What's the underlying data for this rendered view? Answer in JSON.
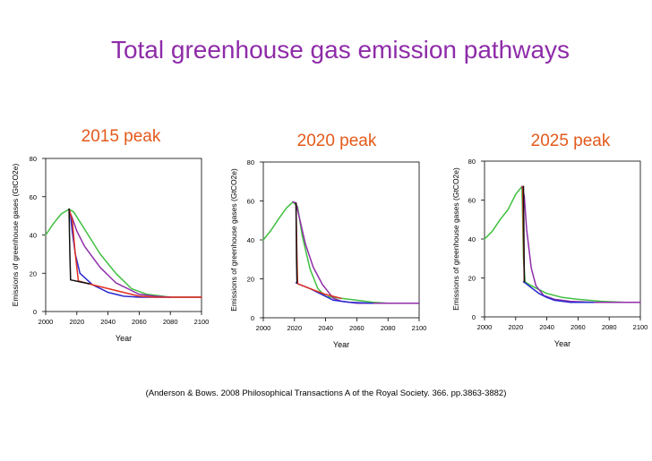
{
  "title": "Total greenhouse gas emission pathways",
  "citation": "(Anderson & Bows. 2008 Philosophical Transactions A of the Royal Society. 366. pp.3863-3882)",
  "colors": {
    "title": "#8e2ca8",
    "panel_title": "#e35a1b"
  },
  "chart_data": [
    {
      "type": "line",
      "title": "2015 peak",
      "xlabel": "Year",
      "ylabel": "Emissions of greenhouse gases (GtCO2e)",
      "xlim": [
        2000,
        2100
      ],
      "ylim": [
        0,
        80
      ],
      "xticks": [
        "2000",
        "2020",
        "2040",
        "2060",
        "2080",
        "2100"
      ],
      "yticks": [
        "0",
        "20",
        "40",
        "60",
        "80"
      ],
      "grid": false,
      "series": [
        {
          "name": "green",
          "color": "#3fbf3f",
          "x": [
            2000,
            2005,
            2010,
            2015,
            2018,
            2025,
            2035,
            2045,
            2055,
            2065,
            2080,
            2100
          ],
          "y": [
            40,
            46,
            51,
            53.5,
            52,
            43,
            30,
            20,
            12,
            9,
            7.5,
            7.5
          ]
        },
        {
          "name": "purple",
          "color": "#8f2fa8",
          "x": [
            2015,
            2016,
            2017,
            2020,
            2025,
            2035,
            2045,
            2055,
            2060,
            2070,
            2080,
            2100
          ],
          "y": [
            53.5,
            51,
            49,
            42,
            34,
            23,
            15,
            11,
            9,
            8,
            7.5,
            7.5
          ]
        },
        {
          "name": "blue",
          "color": "#2a2ad0",
          "x": [
            2015,
            2016,
            2017,
            2019,
            2022,
            2030,
            2040,
            2050,
            2060,
            2070,
            2080
          ],
          "y": [
            53.5,
            50,
            42,
            30,
            20,
            14,
            10,
            8,
            7.5,
            7.5,
            7.5
          ]
        },
        {
          "name": "red",
          "color": "#e03020",
          "x": [
            2015,
            2017,
            2019,
            2021,
            2030,
            2040,
            2050,
            2060,
            2070,
            2080,
            2100
          ],
          "y": [
            53.5,
            48,
            30,
            16,
            14,
            12,
            10,
            8,
            7.5,
            7.5,
            7.5
          ]
        },
        {
          "name": "black",
          "color": "#111111",
          "x": [
            2015,
            2015.5,
            2016,
            2022,
            2028
          ],
          "y": [
            53.5,
            30,
            16.5,
            15.5,
            14.5
          ]
        }
      ]
    },
    {
      "type": "line",
      "title": "2020 peak",
      "xlabel": "Year",
      "ylabel": "Emissions of greenhouse gases (GtCO2e)",
      "xlim": [
        2000,
        2100
      ],
      "ylim": [
        0,
        80
      ],
      "xticks": [
        "2000",
        "2020",
        "2040",
        "2060",
        "2080",
        "2100"
      ],
      "yticks": [
        "0",
        "20",
        "40",
        "60",
        "80"
      ],
      "grid": false,
      "series": [
        {
          "name": "green",
          "color": "#3fbf3f",
          "x": [
            2000,
            2005,
            2010,
            2015,
            2019,
            2022,
            2025,
            2030,
            2035,
            2040
          ],
          "y": [
            40,
            45,
            51,
            56.5,
            59.5,
            57,
            42,
            25,
            15,
            11
          ]
        },
        {
          "name": "green-tail",
          "color": "#3fbf3f",
          "x": [
            2040,
            2050,
            2060,
            2070,
            2080,
            2090,
            2100
          ],
          "y": [
            11,
            10,
            9,
            8,
            7.5,
            7.5,
            7.5
          ]
        },
        {
          "name": "purple",
          "color": "#8f2fa8",
          "x": [
            2019,
            2021,
            2023,
            2027,
            2032,
            2038,
            2045,
            2050,
            2060,
            2080,
            2100
          ],
          "y": [
            59.5,
            59,
            52,
            38,
            26,
            17,
            10,
            8.5,
            7.5,
            7.5,
            7.5
          ]
        },
        {
          "name": "blue",
          "color": "#2a2ad0",
          "x": [
            2021,
            2022,
            2030,
            2040,
            2045,
            2055,
            2070
          ],
          "y": [
            18,
            17.5,
            15,
            11,
            9,
            8,
            7.5
          ]
        },
        {
          "name": "red",
          "color": "#e03020",
          "x": [
            2021,
            2021.5,
            2022,
            2030,
            2040,
            2050
          ],
          "y": [
            59,
            35,
            17.5,
            15,
            12,
            10
          ]
        },
        {
          "name": "black",
          "color": "#111111",
          "x": [
            2021,
            2021.3,
            2021.6
          ],
          "y": [
            59,
            30,
            18
          ]
        }
      ]
    },
    {
      "type": "line",
      "title": "2025 peak",
      "xlabel": "Year",
      "ylabel": "Emissions of greenhouse gases (GtCO2e)",
      "xlim": [
        2000,
        2100
      ],
      "ylim": [
        0,
        80
      ],
      "xticks": [
        "2000",
        "2020",
        "2040",
        "2060",
        "2080",
        "2100"
      ],
      "yticks": [
        "0",
        "20",
        "40",
        "60",
        "80"
      ],
      "grid": false,
      "series": [
        {
          "name": "green",
          "color": "#3fbf3f",
          "x": [
            2000,
            2005,
            2010,
            2015,
            2020,
            2024,
            2025,
            2026,
            2030,
            2040,
            2050,
            2060,
            2075,
            2090,
            2100
          ],
          "y": [
            40,
            44,
            50,
            55,
            63,
            67,
            30,
            18,
            16,
            12,
            10,
            9,
            8,
            7.5,
            7.5
          ]
        },
        {
          "name": "purple",
          "color": "#8f2fa8",
          "x": [
            2024,
            2025.5,
            2027,
            2030,
            2033,
            2038,
            2045,
            2055,
            2070,
            2100
          ],
          "y": [
            67,
            62,
            45,
            25,
            16,
            11,
            9,
            8,
            7.5,
            7.5
          ]
        },
        {
          "name": "blue",
          "color": "#2a2ad0",
          "x": [
            2025,
            2026,
            2030,
            2035,
            2040,
            2045,
            2055,
            2070
          ],
          "y": [
            18,
            17.5,
            15,
            12,
            10,
            8.5,
            7.5,
            7.5
          ]
        },
        {
          "name": "red",
          "color": "#e03020",
          "x": [
            2024.5,
            2025,
            2025.5
          ],
          "y": [
            67,
            40,
            18
          ]
        },
        {
          "name": "black",
          "color": "#111111",
          "x": [
            2025,
            2025.3,
            2025.6
          ],
          "y": [
            67,
            40,
            18
          ]
        }
      ]
    }
  ]
}
